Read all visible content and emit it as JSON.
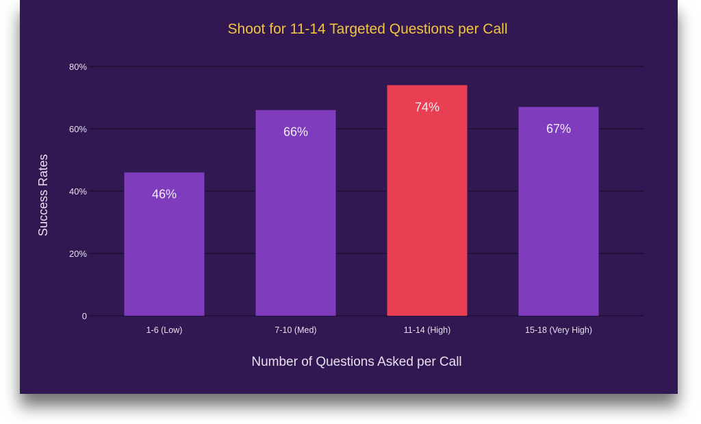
{
  "chart_data": {
    "type": "bar",
    "title": "Shoot for 11-14 Targeted Questions per Call",
    "xlabel": "Number of Questions Asked per Call",
    "ylabel": "Success Rates",
    "categories": [
      "1-6 (Low)",
      "7-10 (Med)",
      "11-14 (High)",
      "15-18 (Very High)"
    ],
    "values": [
      46,
      66,
      74,
      67
    ],
    "data_labels": [
      "46%",
      "66%",
      "74%",
      "67%"
    ],
    "ylim": [
      0,
      80
    ],
    "yticks": [
      0,
      20,
      40,
      60,
      80
    ],
    "ytick_labels": [
      "0",
      "20%",
      "40%",
      "60%",
      "80%"
    ],
    "grid": true,
    "colors": {
      "background": "#311853",
      "bar": "#7f3dbd",
      "highlight_bar": "#e83f52",
      "title": "#f2c53d",
      "text": "#e6e0ee",
      "grid": "#1e0d36"
    },
    "highlight_index": 2
  }
}
